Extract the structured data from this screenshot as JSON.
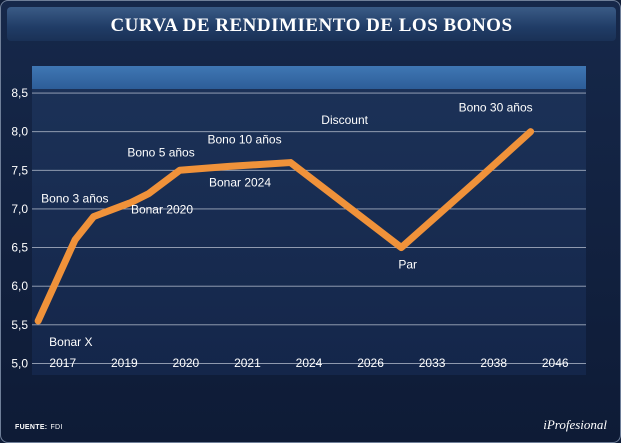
{
  "title": "CURVA DE RENDIMIENTO DE LOS BONOS",
  "source_label": "FUENTE:",
  "source_value": "FDI",
  "logo": "iProfesional",
  "chart_data": {
    "type": "line",
    "title": "CURVA DE RENDIMIENTO DE LOS BONOS",
    "xlabel": "",
    "ylabel": "",
    "categories": [
      "2017",
      "2019",
      "2020",
      "2021",
      "2024",
      "2026",
      "2033",
      "2038",
      "2046"
    ],
    "y_ticks": [
      "8,5",
      "8,0",
      "7,5",
      "7,0",
      "6,5",
      "6,0",
      "5,5",
      "5,0"
    ],
    "ylim": [
      4.85,
      8.85
    ],
    "grid": true,
    "line_color": "#f0923a",
    "points": [
      {
        "x": 0.1,
        "y": 5.55,
        "label": "Bonar X",
        "label_pos": "below"
      },
      {
        "x": 0.7,
        "y": 6.6,
        "label": "",
        "label_pos": ""
      },
      {
        "x": 1.0,
        "y": 6.9,
        "label": "Bono 3 años",
        "label_pos": "upper-left"
      },
      {
        "x": 1.6,
        "y": 7.08,
        "label": "",
        "label_pos": ""
      },
      {
        "x": 1.9,
        "y": 7.2,
        "label": "Bonar 2020",
        "label_pos": "below"
      },
      {
        "x": 2.4,
        "y": 7.5,
        "label": "Bono 5 años",
        "label_pos": "upper-left"
      },
      {
        "x": 3.2,
        "y": 7.55,
        "label": "Bonar 2024",
        "label_pos": "below"
      },
      {
        "x": 4.2,
        "y": 7.6,
        "label": "Bono 10 años",
        "label_pos": "above"
      },
      {
        "x": 6.0,
        "y": 6.5,
        "label": "Par",
        "label_pos": "below"
      },
      {
        "x": 7.2,
        "y": 7.35,
        "label": "",
        "label_pos": ""
      },
      {
        "x": 8.1,
        "y": 8.0,
        "label": "Bono 30 años",
        "label_pos": "above"
      }
    ],
    "annotations": [
      {
        "text": "Discount",
        "x": 4.7,
        "y": 8.1
      }
    ]
  }
}
